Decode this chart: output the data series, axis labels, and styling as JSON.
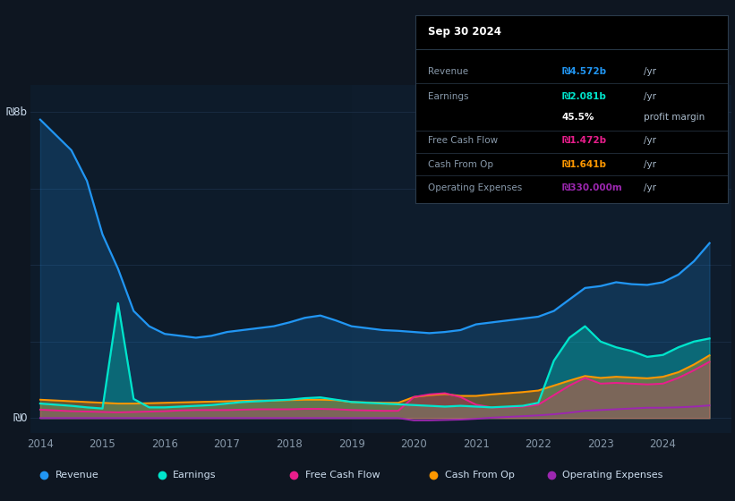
{
  "bg_color": "#0e1621",
  "plot_bg_color": "#0d1b2a",
  "grid_color": "#1a2d45",
  "text_color": "#8899aa",
  "revenue_color": "#2196f3",
  "earnings_color": "#00e5cc",
  "fcf_color": "#e91e8c",
  "cashfromop_color": "#ff9800",
  "opex_color": "#9c27b0",
  "tooltip_title": "Sep 30 2024",
  "tooltip_rows": [
    {
      "label": "Revenue",
      "value": "₪4.572b",
      "suffix": "/yr",
      "color": "#2196f3"
    },
    {
      "label": "Earnings",
      "value": "₪2.081b",
      "suffix": "/yr",
      "color": "#00e5cc"
    },
    {
      "label": "",
      "value": "45.5%",
      "suffix": "profit margin",
      "color": "#ffffff"
    },
    {
      "label": "Free Cash Flow",
      "value": "₪1.472b",
      "suffix": "/yr",
      "color": "#e91e8c"
    },
    {
      "label": "Cash From Op",
      "value": "₪1.641b",
      "suffix": "/yr",
      "color": "#ff9800"
    },
    {
      "label": "Operating Expenses",
      "value": "₪330.000m",
      "suffix": "/yr",
      "color": "#9c27b0"
    }
  ],
  "legend_labels": [
    "Revenue",
    "Earnings",
    "Free Cash Flow",
    "Cash From Op",
    "Operating Expenses"
  ],
  "legend_colors": [
    "#2196f3",
    "#00e5cc",
    "#e91e8c",
    "#ff9800",
    "#9c27b0"
  ]
}
